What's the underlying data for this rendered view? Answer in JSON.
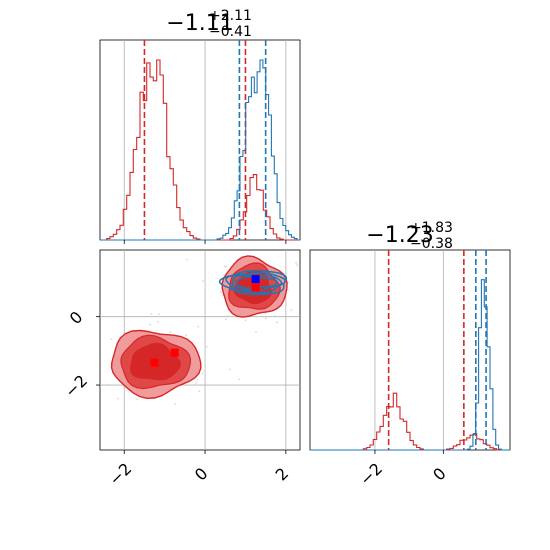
{
  "chart_data": {
    "type": "corner",
    "colors": {
      "red": "#d62728",
      "blue": "#1f77b4",
      "red_fill": "#f19c9c",
      "red_fill_dark": "#e04848",
      "grid": "#b0b0b0"
    },
    "panels": [
      {
        "id": "hist-x",
        "type": "histogram",
        "title": {
          "value": "−1.11",
          "sup": "+2.11",
          "sub": "−0.41"
        },
        "xlim": [
          -2.6,
          2.35
        ],
        "x_ticks": [
          -2,
          0,
          2
        ],
        "show_tick_labels": false,
        "series": [
          {
            "name": "red",
            "color": "#d62728",
            "peaks": [
              {
                "center": -1.3,
                "sigma": 0.35,
                "height": 1.0
              },
              {
                "center": 1.25,
                "sigma": 0.22,
                "height": 0.34
              }
            ],
            "quantiles": [
              -1.5,
              1.0
            ]
          },
          {
            "name": "blue",
            "color": "#1f77b4",
            "peaks": [
              {
                "center": 1.3,
                "sigma": 0.3,
                "height": 1.0
              }
            ],
            "quantiles": [
              0.85,
              1.5
            ]
          }
        ]
      },
      {
        "id": "scatter-xy",
        "type": "scatter-contour",
        "xlim": [
          -2.6,
          2.35
        ],
        "ylim": [
          -3.9,
          1.95
        ],
        "x_ticks": [
          -2,
          0,
          2
        ],
        "y_ticks": [
          -2,
          0
        ],
        "x_tick_labels": [
          "−2",
          "0",
          "2"
        ],
        "y_tick_labels": [
          "−2",
          "0"
        ],
        "red_modes": [
          {
            "x": -1.25,
            "y": -1.35,
            "rx": 1.1,
            "ry": 0.95
          },
          {
            "x": 1.2,
            "y": 0.85,
            "rx": 0.8,
            "ry": 0.85
          }
        ],
        "blue_mode": {
          "x": 1.25,
          "y": 1.0,
          "rx": 0.8,
          "ry": 0.35
        },
        "markers": [
          {
            "x": -1.25,
            "y": -1.35,
            "color": "#ff0000"
          },
          {
            "x": -0.75,
            "y": -1.05,
            "color": "#ff0000"
          },
          {
            "x": 1.25,
            "y": 0.85,
            "color": "#ff0000"
          },
          {
            "x": 1.25,
            "y": 1.1,
            "color": "#0000ff"
          }
        ]
      },
      {
        "id": "hist-y",
        "type": "histogram",
        "title": {
          "value": "−1.23",
          "sup": "+1.83",
          "sub": "−0.38"
        },
        "xlim": [
          -3.9,
          1.95
        ],
        "x_ticks": [
          -2,
          0
        ],
        "x_tick_labels": [
          "−2",
          "0"
        ],
        "show_tick_labels": true,
        "series": [
          {
            "name": "red",
            "color": "#d62728",
            "peaks": [
              {
                "center": -1.45,
                "sigma": 0.3,
                "height": 0.28
              },
              {
                "center": 0.85,
                "sigma": 0.3,
                "height": 0.08
              }
            ],
            "quantiles": [
              -1.6,
              0.6
            ]
          },
          {
            "name": "blue",
            "color": "#1f77b4",
            "peaks": [
              {
                "center": 1.2,
                "sigma": 0.14,
                "height": 0.9
              }
            ],
            "quantiles": [
              0.95,
              1.25
            ]
          }
        ]
      }
    ]
  }
}
